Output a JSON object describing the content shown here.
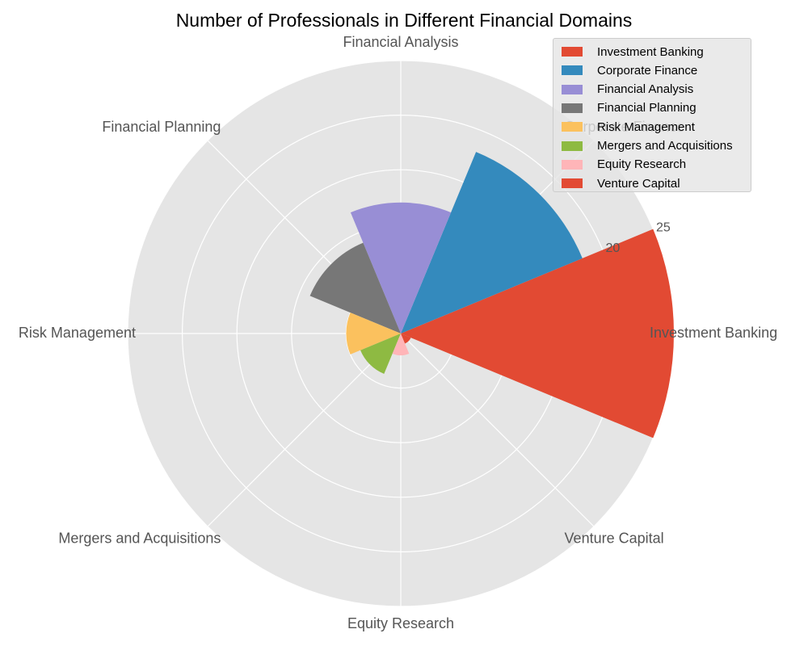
{
  "chart_data": {
    "type": "polar-bar",
    "title": "Number of Professionals in Different Financial Domains",
    "categories": [
      "Investment Banking",
      "Corporate Finance",
      "Financial Analysis",
      "Financial Planning",
      "Risk Management",
      "Mergers and Acquisitions",
      "Equity Research",
      "Venture Capital"
    ],
    "values": [
      25,
      18,
      12,
      9,
      5,
      4,
      2,
      1
    ],
    "colors": [
      "#E24A33",
      "#348ABD",
      "#988ED5",
      "#777777",
      "#FBC15E",
      "#8EBA42",
      "#FFB5B8",
      "#E24A33"
    ],
    "rlim": [
      0,
      25
    ],
    "rticks": [
      20,
      25
    ],
    "grid": true,
    "legend_position": "top-right"
  }
}
